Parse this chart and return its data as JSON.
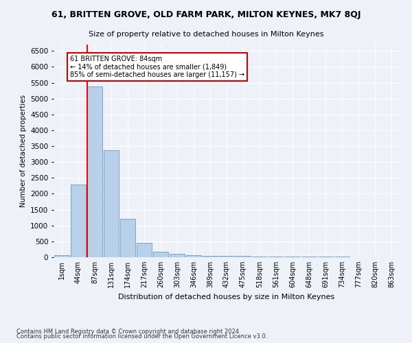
{
  "title1": "61, BRITTEN GROVE, OLD FARM PARK, MILTON KEYNES, MK7 8QJ",
  "title2": "Size of property relative to detached houses in Milton Keynes",
  "xlabel": "Distribution of detached houses by size in Milton Keynes",
  "ylabel": "Number of detached properties",
  "annotation_line1": "61 BRITTEN GROVE: 84sqm",
  "annotation_line2": "← 14% of detached houses are smaller (1,849)",
  "annotation_line3": "85% of semi-detached houses are larger (11,157) →",
  "footer1": "Contains HM Land Registry data © Crown copyright and database right 2024.",
  "footer2": "Contains public sector information licensed under the Open Government Licence v3.0.",
  "bar_color": "#b8d0e8",
  "bar_edgecolor": "#6699cc",
  "categories": [
    "1sqm",
    "44sqm",
    "87sqm",
    "131sqm",
    "174sqm",
    "217sqm",
    "260sqm",
    "303sqm",
    "346sqm",
    "389sqm",
    "432sqm",
    "475sqm",
    "518sqm",
    "561sqm",
    "604sqm",
    "648sqm",
    "691sqm",
    "734sqm",
    "777sqm",
    "820sqm",
    "863sqm"
  ],
  "values": [
    55,
    2300,
    5380,
    3380,
    1200,
    450,
    175,
    100,
    55,
    50,
    40,
    35,
    30,
    25,
    20,
    18,
    15,
    12,
    10,
    8,
    5
  ],
  "ylim": [
    0,
    6700
  ],
  "yticks": [
    0,
    500,
    1000,
    1500,
    2000,
    2500,
    3000,
    3500,
    4000,
    4500,
    5000,
    5500,
    6000,
    6500
  ],
  "background_color": "#eef2f8",
  "grid_color": "#ffffff",
  "annotation_box_facecolor": "#ffffff",
  "annotation_box_edgecolor": "#cc0000",
  "red_line_index": 2
}
